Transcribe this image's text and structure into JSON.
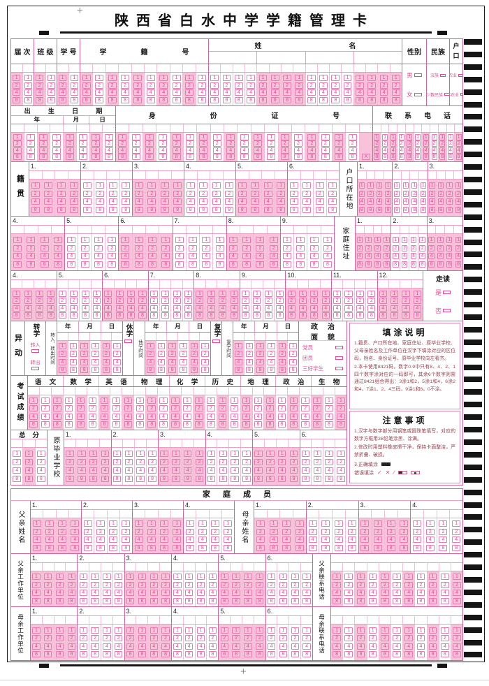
{
  "title": "陕西省白水中学学籍管理卡",
  "digits": [
    "1",
    "2",
    "4",
    "8"
  ],
  "x_digit": "X",
  "top_fields": {
    "jieci": "届次",
    "banji": "班级",
    "xuehao": "学号",
    "xuejihao": "学籍号",
    "xingming": "姓名",
    "gender": {
      "label": "性别",
      "options": [
        "男",
        "女"
      ]
    },
    "ethnic": {
      "label": "民族",
      "options": [
        "汉族",
        "少数民族"
      ]
    },
    "hukou": {
      "label": "户口",
      "options": [
        "农业",
        "非农业"
      ]
    }
  },
  "row_birth": {
    "birth_title": "出生日期",
    "birth_units": [
      {
        "label": "年",
        "cols": 4
      },
      {
        "label": "月",
        "cols": 2
      },
      {
        "label": "日",
        "cols": 2
      }
    ],
    "id_title": "身份证号",
    "phone_title": "联系电话"
  },
  "jiguan": {
    "label": "籍贯",
    "groups": [
      "1.",
      "2.",
      "3.",
      "4.",
      "5.",
      "6."
    ]
  },
  "hukou_suozaidi": {
    "label": "户口所在地",
    "groups_row1": [
      "1.",
      "2.",
      "3."
    ],
    "groups_row2": [
      "4.",
      "5.",
      "6.",
      "7.",
      "8.",
      "9."
    ]
  },
  "jiating_zhuzhi": {
    "label": "家庭住址",
    "groups_row1": [
      "1.",
      "2.",
      "3."
    ],
    "groups_row2": [
      "4.",
      "5.",
      "6.",
      "7.",
      "8.",
      "9.",
      "10.",
      "11.",
      "12."
    ]
  },
  "zoudu": {
    "label": "走读",
    "options": [
      "是",
      "否"
    ]
  },
  "yidong": {
    "label": "异动",
    "zhuanxue": {
      "label": "转学",
      "options": [
        "转入",
        "转出"
      ]
    },
    "zhuan_time_label": "转入、转出时间",
    "xiuxue_label": "休学",
    "xiuxue_time_label": "休学时间",
    "fuxue_label": "复学",
    "fuxue_time_label": "复学时间",
    "date_units": [
      "年",
      "月",
      "日"
    ],
    "zhengzhi": {
      "label": "政治面貌",
      "options": [
        "党员",
        "团员",
        "三好学生"
      ]
    }
  },
  "scores": {
    "label": "考试成绩",
    "subjects": [
      "语文",
      "数学",
      "英语",
      "物理",
      "化学",
      "历史",
      "地理",
      "政治",
      "生物"
    ]
  },
  "zongfen_label": "总分",
  "school": {
    "label": "原毕业学校",
    "groups": [
      "1.",
      "2.",
      "3.",
      "4.",
      "5.",
      "6."
    ]
  },
  "instructions": {
    "title": "填涂说明",
    "items": [
      "1.籍贯、户口所在地、家庭住址、原毕业学校、父母亲姓名及工作单位在汉字下填涂对应的区位码，姓名、身份证号、原毕业学校向左看齐。",
      "2.本卡使用8421码，数字0-9中只有8、4、2、1四个数字涂对应的一码即可，其余6个数字则需通过8421组合得出：3涂1和2，5涂1和4，6涂2和4，7涂1、2、4三码，9涂1和8，0不涂。"
    ]
  },
  "notes": {
    "title": "注意事项",
    "items": [
      "1.汉字与数字部分用钢笔或圆珠笔填写，对应的数字方框用2B铅笔涂黑、涂满。",
      "2.修改时用塑料橡皮擦干净，保持卡面整洁，严禁折叠、破损。"
    ],
    "correct_label": "3.正确填涂",
    "wrong_label": "错误填涂",
    "wrong_marks": [
      "check",
      "cross",
      "slash",
      "half",
      "dot"
    ]
  },
  "family": {
    "title": "家庭成员",
    "father_name": {
      "label": "父亲姓名",
      "groups": [
        "1.",
        "2.",
        "3.",
        "4."
      ]
    },
    "mother_name": {
      "label": "母亲姓名",
      "groups": [
        "1.",
        "2.",
        "3.",
        "4."
      ]
    },
    "father_work": {
      "label": "父亲工作单位",
      "groups": [
        "1.",
        "2.",
        "3.",
        "4.",
        "5.",
        "6."
      ]
    },
    "father_phone_label": "父亲联系电话",
    "mother_work": {
      "label": "母亲工作单位",
      "groups": [
        "1.",
        "2.",
        "3.",
        "4.",
        "5.",
        "6."
      ]
    },
    "mother_phone_label": "母亲联系电话"
  }
}
